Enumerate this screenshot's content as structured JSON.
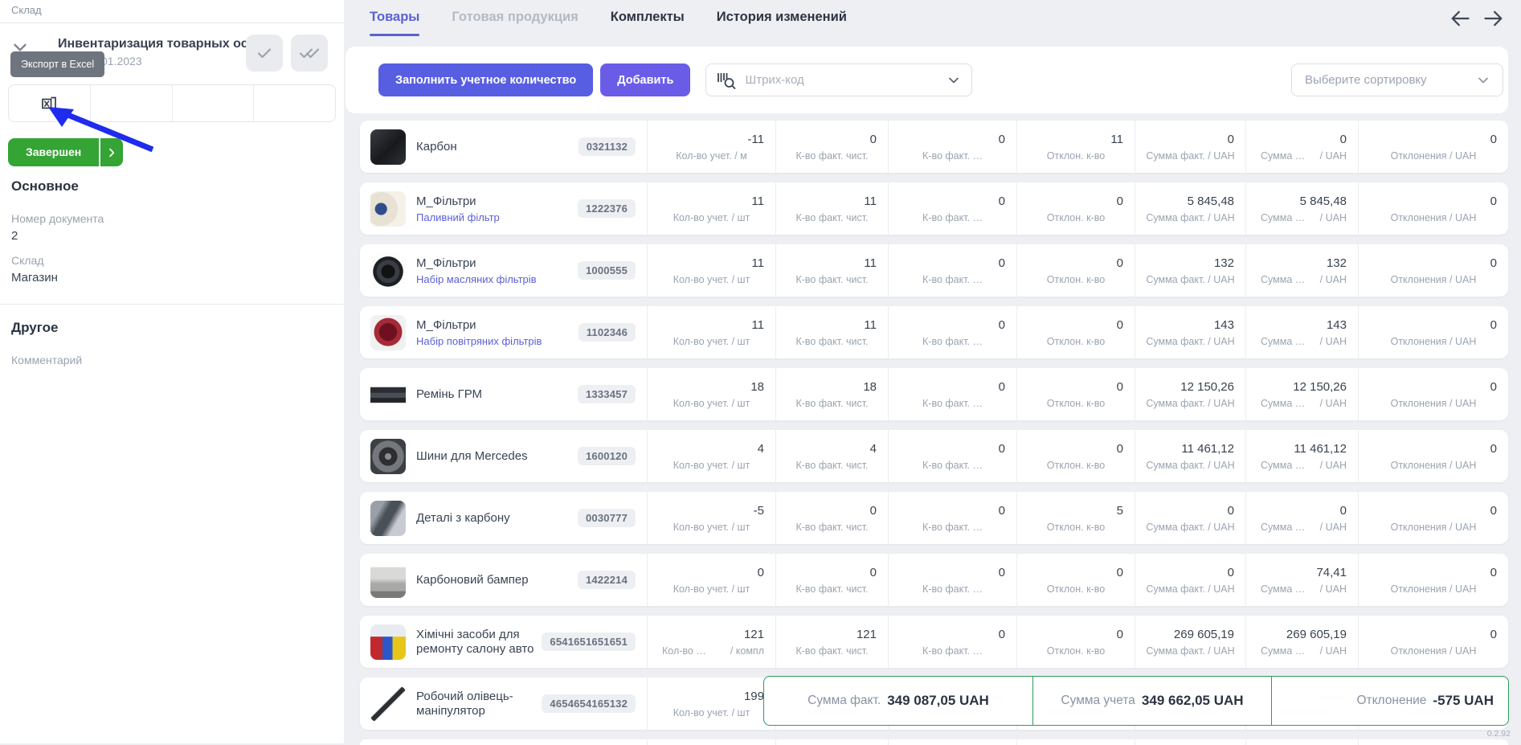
{
  "sidebar": {
    "breadcrumb": "Склад",
    "doc_title": "Инвентаризация товарных ост…",
    "doc_date_visible": "01.2023",
    "tooltip": "Экспорт в Excel",
    "status_button": "Завершен",
    "section_main": "Основное",
    "fields": [
      {
        "label": "Номер документа",
        "value": "2"
      },
      {
        "label": "Склад",
        "value": "Магазин"
      }
    ],
    "section_other": "Другое",
    "comment_label": "Комментарий"
  },
  "header": {
    "tabs": [
      {
        "label": "Товары",
        "active": true
      },
      {
        "label": "Готовая продукция",
        "dim": true
      },
      {
        "label": "Комплекты"
      },
      {
        "label": "История изменений"
      }
    ]
  },
  "toolbar": {
    "fill_button": "Заполнить учетное количество",
    "add_button": "Добавить",
    "barcode_placeholder": "Штрих-код",
    "sort_placeholder": "Выберите сортировку"
  },
  "table": {
    "column_labels": {
      "qty_fact": "К-во факт. чист.",
      "qty_fact2": "К-во факт. …",
      "dev_qty": "Отклон. к-во",
      "sum_fact": "Сумма факт. / UAH",
      "sum_acc_left": "Сумма …",
      "sum_acc_right": "/ UAH",
      "dev_sum": "Отклонения / UAH"
    },
    "rows": [
      {
        "name": "Карбон",
        "code": "0321132",
        "image": "carbon-roll",
        "qty_label": "Кол-во учет. / м",
        "values": [
          "-11",
          "0",
          "0",
          "11",
          "0",
          "0",
          "0"
        ]
      },
      {
        "name": "М_Фільтри",
        "subtitle": "Паливний фільтр",
        "code": "1222376",
        "image": "fuel-filter",
        "qty_label": "Кол-во учет. / шт",
        "values": [
          "11",
          "11",
          "0",
          "0",
          "5 845,48",
          "5 845,48",
          "0"
        ]
      },
      {
        "name": "М_Фільтри",
        "subtitle": "Набір масляних фільтрів",
        "code": "1000555",
        "image": "oil-filter",
        "qty_label": "Кол-во учет. / шт",
        "values": [
          "11",
          "11",
          "0",
          "0",
          "132",
          "132",
          "0"
        ]
      },
      {
        "name": "М_Фільтри",
        "subtitle": "Набір повітряних фільтрів",
        "code": "1102346",
        "image": "air-filter",
        "qty_label": "Кол-во учет. / шт",
        "values": [
          "11",
          "11",
          "0",
          "0",
          "143",
          "143",
          "0"
        ]
      },
      {
        "name": "Ремінь ГРМ",
        "code": "1333457",
        "image": "timing-belt",
        "qty_label": "Кол-во учет. / шт",
        "values": [
          "18",
          "18",
          "0",
          "0",
          "12 150,26",
          "12 150,26",
          "0"
        ]
      },
      {
        "name": "Шини для Mercedes",
        "code": "1600120",
        "image": "wheel",
        "qty_label": "Кол-во учет. / шт",
        "values": [
          "4",
          "4",
          "0",
          "0",
          "11 461,12",
          "11 461,12",
          "0"
        ]
      },
      {
        "name": "Деталі з карбону",
        "code": "0030777",
        "image": "carbon-parts",
        "qty_label": "Кол-во учет. / шт",
        "values": [
          "-5",
          "0",
          "0",
          "5",
          "0",
          "0",
          "0"
        ]
      },
      {
        "name": "Карбоновий бампер",
        "code": "1422214",
        "image": "bumper",
        "qty_label": "Кол-во учет. / шт",
        "values": [
          "0",
          "0",
          "0",
          "0",
          "0",
          "74,41",
          "0"
        ]
      },
      {
        "name": "Хімічні засоби для ремонту салону авто",
        "code": "6541651651651",
        "image": "chemicals",
        "qty_label_left": "Кол-во …",
        "qty_label_right": "/ компл",
        "values": [
          "121",
          "121",
          "0",
          "0",
          "269 605,19",
          "269 605,19",
          "0"
        ]
      },
      {
        "name": "Робочий олівець-маніпулятор",
        "code": "4654654165132",
        "image": "pencil",
        "qty_label": "Кол-во учет. / шт",
        "values": [
          "199",
          "",
          "",
          "",
          "",
          "",
          ""
        ],
        "covered_by_summary": true
      }
    ]
  },
  "summary": {
    "items": [
      {
        "label": "Сумма факт.",
        "value": "349 087,05 UAH"
      },
      {
        "label": "Сумма учета",
        "value": "349 662,05 UAH"
      },
      {
        "label": "Отклонение",
        "value": "-575 UAH"
      }
    ]
  },
  "version": "0.2.92"
}
